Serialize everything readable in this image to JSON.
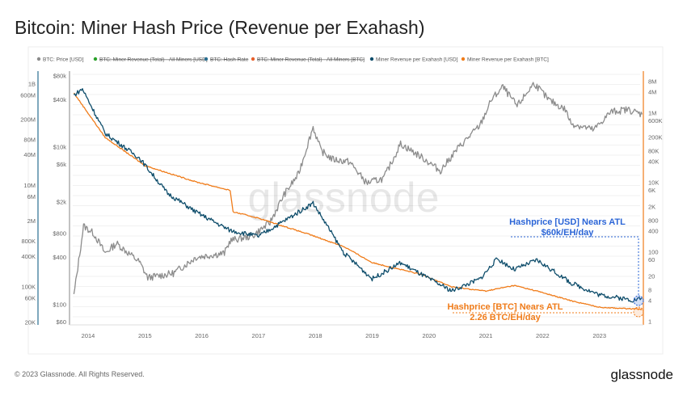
{
  "title": "Bitcoin: Miner Hash Price (Revenue per Exahash)",
  "footer": {
    "copyright": "© 2023 Glassnode. All Rights Reserved.",
    "logo": "glassnode"
  },
  "watermark": "glassnode",
  "colors": {
    "price": "#8c8c8c",
    "usd": "#0e4d6b",
    "btc": "#f07c1a",
    "hashrate_axis": "#2a6f91",
    "ann_usd": "#2a64d6",
    "ann_btc": "#f07c1a",
    "rev_usd_legend": "#2aa12a",
    "hash_legend": "#2a6f91"
  },
  "chart_data": {
    "type": "line",
    "title": "Bitcoin: Miner Hash Price (Revenue per Exahash)",
    "legend_position": "top",
    "legend": [
      {
        "name": "BTC: Price [USD]",
        "color": "#8c8c8c",
        "hidden": false
      },
      {
        "name": "BTC: Miner Revenue (Total) - All Miners [USD]",
        "color": "#2aa12a",
        "hidden": true
      },
      {
        "name": "BTC: Hash Rate",
        "color": "#2a6f91",
        "hidden": true
      },
      {
        "name": "BTC: Miner Revenue (Total) - All Miners [BTC]",
        "color": "#e8602c",
        "hidden": true
      },
      {
        "name": "Miner Revenue per Exahash [USD]",
        "color": "#0e4d6b",
        "hidden": false
      },
      {
        "name": "Miner Revenue per Exahash [BTC]",
        "color": "#f07c1a",
        "hidden": false
      }
    ],
    "x_ticks": [
      "2014",
      "2015",
      "2016",
      "2017",
      "2018",
      "2019",
      "2020",
      "2021",
      "2022",
      "2023"
    ],
    "xlim": [
      2013.75,
      2023.75
    ],
    "axes": {
      "left_outer": {
        "scale": "log",
        "ylim": [
          20000,
          1200000000
        ],
        "ticks": [
          "1B",
          "600M",
          "200M",
          "80M",
          "40M",
          "10M",
          "6M",
          "2M",
          "800K",
          "400K",
          "100K",
          "60K",
          "20K"
        ],
        "tick_values": [
          1000000000.0,
          600000000.0,
          200000000.0,
          80000000.0,
          40000000.0,
          10000000.0,
          6000000.0,
          2000000.0,
          800000.0,
          400000.0,
          100000.0,
          60000.0,
          20000.0
        ]
      },
      "left_inner": {
        "scale": "log",
        "ylim": [
          60,
          80000
        ],
        "ticks": [
          "$80k",
          "$40k",
          "$10k",
          "$6k",
          "$2k",
          "$800",
          "$400",
          "$100",
          "$60"
        ],
        "tick_values": [
          80000,
          40000,
          10000,
          6000,
          2000,
          800,
          400,
          100,
          60
        ]
      },
      "right": {
        "scale": "log",
        "ylim": [
          1,
          8000000
        ],
        "ticks": [
          "8M",
          "4M",
          "1M",
          "600K",
          "200K",
          "80K",
          "40K",
          "10K",
          "6K",
          "2K",
          "800",
          "400",
          "100",
          "60",
          "20",
          "8",
          "4",
          "1"
        ],
        "tick_values": [
          8000000.0,
          4000000.0,
          1000000.0,
          600000.0,
          200000.0,
          80000.0,
          40000.0,
          10000.0,
          6000.0,
          2000.0,
          800,
          400,
          100,
          60,
          20,
          8,
          4,
          1
        ]
      }
    },
    "grid": true,
    "series": [
      {
        "name": "BTC: Price [USD]",
        "axis": "left_inner",
        "x": [
          2013.75,
          2013.92,
          2014.1,
          2014.3,
          2014.5,
          2014.9,
          2015.05,
          2015.5,
          2015.9,
          2016.4,
          2016.5,
          2016.9,
          2017.2,
          2017.45,
          2017.7,
          2017.96,
          2018.1,
          2018.3,
          2018.6,
          2018.9,
          2019.2,
          2019.5,
          2019.9,
          2020.2,
          2020.5,
          2020.9,
          2021.1,
          2021.3,
          2021.55,
          2021.85,
          2022.1,
          2022.4,
          2022.5,
          2022.9,
          2023.2,
          2023.5,
          2023.75
        ],
        "y": [
          130,
          1000,
          800,
          450,
          600,
          350,
          220,
          250,
          400,
          450,
          650,
          750,
          1100,
          2500,
          4500,
          18000,
          9000,
          7000,
          6500,
          3500,
          4000,
          11000,
          7200,
          5000,
          9500,
          19000,
          40000,
          58000,
          33000,
          65000,
          40000,
          30000,
          20000,
          16500,
          28000,
          30000,
          26000
        ]
      },
      {
        "name": "Miner Revenue per Exahash [USD]",
        "axis": "left_outer",
        "x": [
          2013.75,
          2013.9,
          2014.3,
          2014.9,
          2015.4,
          2015.9,
          2016.5,
          2017.0,
          2017.45,
          2017.96,
          2018.5,
          2019.0,
          2019.5,
          2020.0,
          2020.4,
          2020.9,
          2021.2,
          2021.5,
          2021.9,
          2022.5,
          2023.0,
          2023.6,
          2023.75
        ],
        "y": [
          600000000,
          800000000,
          107000000,
          35000000,
          7000000,
          3000000,
          1300000,
          1000000,
          2000000,
          4500000,
          470000,
          145000,
          300000,
          145000,
          84000,
          145000,
          360000,
          220000,
          340000,
          120000,
          70000,
          55000,
          60000
        ]
      },
      {
        "name": "Miner Revenue per Exahash [BTC]",
        "axis": "right",
        "x": [
          2013.75,
          2014.3,
          2015.0,
          2015.9,
          2016.5,
          2016.55,
          2017.0,
          2017.9,
          2018.5,
          2019.0,
          2019.9,
          2020.4,
          2021.0,
          2021.5,
          2021.9,
          2022.5,
          2023.0,
          2023.75
        ],
        "y": [
          3800000,
          200000,
          31000,
          10500,
          6000,
          1450,
          950,
          320,
          145,
          50,
          22,
          10,
          7.6,
          11,
          7.6,
          4,
          2.6,
          2.26
        ]
      }
    ],
    "annotations": [
      {
        "line1": "Hashprice [USD] Nears ATL",
        "line2": "$60k/EH/day",
        "color": "#2a64d6"
      },
      {
        "line1": "Hashprice [BTC] Nears ATL",
        "line2": "2.26 BTC/EH/day",
        "color": "#f07c1a"
      }
    ]
  }
}
